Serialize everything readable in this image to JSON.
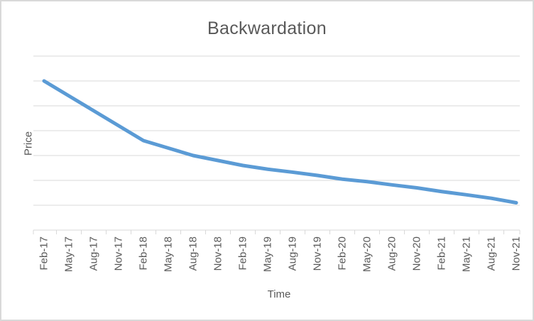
{
  "chart_data": {
    "type": "line",
    "title": "Backwardation",
    "xlabel": "Time",
    "ylabel": "Price",
    "categories": [
      "Feb-17",
      "May-17",
      "Aug-17",
      "Nov-17",
      "Feb-18",
      "May-18",
      "Aug-18",
      "Nov-18",
      "Feb-19",
      "May-19",
      "Aug-19",
      "Nov-19",
      "Feb-20",
      "May-20",
      "Aug-20",
      "Nov-20",
      "Feb-21",
      "May-21",
      "Aug-21",
      "Nov-21"
    ],
    "values": [
      6.0,
      5.4,
      4.8,
      4.2,
      3.6,
      3.3,
      3.0,
      2.8,
      2.6,
      2.45,
      2.33,
      2.2,
      2.05,
      1.95,
      1.82,
      1.7,
      1.55,
      1.42,
      1.28,
      1.1
    ],
    "ylim": [
      0,
      7
    ],
    "gridline_step": 1,
    "y_tick_labels_shown": false,
    "x_label_rotation_deg": -90,
    "grid": "horizontal",
    "legend": "none",
    "series_name": "Price",
    "colors": {
      "line": "#5b9bd5",
      "gridline": "#d9d9d9",
      "axis": "#d9d9d9",
      "text": "#595959",
      "frame_border": "#d9d9d9",
      "background": "#ffffff"
    }
  }
}
